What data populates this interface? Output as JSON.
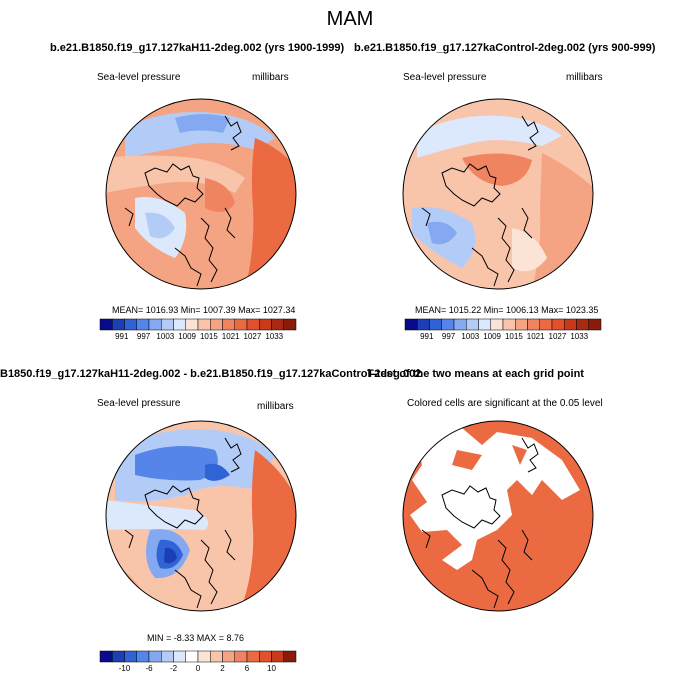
{
  "figure": {
    "title": "MAM"
  },
  "panels": [
    {
      "title": "b.e21.B1850.f19_g17.127kaH11-2deg.002 (yrs 1900-1999)",
      "left_label": "Sea-level pressure",
      "right_label": "millibars",
      "stats": "MEAN= 1016.93  Min= 1007.39  Max= 1027.34",
      "colorbar_ticks": [
        "991",
        "997",
        "1003",
        "1009",
        "1015",
        "1021",
        "1027",
        "1033"
      ]
    },
    {
      "title": "b.e21.B1850.f19_g17.127kaControl-2deg.002 (yrs 900-999)",
      "left_label": "Sea-level pressure",
      "right_label": "millibars",
      "stats": "MEAN= 1015.22  Min= 1006.13  Max= 1023.35",
      "colorbar_ticks": [
        "991",
        "997",
        "1003",
        "1009",
        "1015",
        "1021",
        "1027",
        "1033"
      ]
    },
    {
      "title": "B1850.f19_g17.127kaH11-2deg.002 - b.e21.B1850.f19_g17.127kaControl-2deg.002",
      "left_label": "Sea-level pressure",
      "right_label": "millibars",
      "stats": "MIN = -8.33 MAX =  8.76",
      "colorbar_ticks": [
        "-10",
        "-6",
        "-2",
        "0",
        "2",
        "6",
        "10"
      ]
    },
    {
      "title": "T-test of the two means at each grid point",
      "left_label": "Colored cells are significant at the 0.05 level"
    }
  ],
  "colors": {
    "pressure_scale": [
      "#0a0a8c",
      "#1c3fb5",
      "#2f63d6",
      "#5585e8",
      "#84a9f0",
      "#b3ccf7",
      "#dce8fb",
      "#fbe3d5",
      "#f8c5ab",
      "#f4a482",
      "#f08460",
      "#ec6a42",
      "#e2502c",
      "#c93a1b",
      "#a92a12",
      "#8a1a0a"
    ],
    "diff_scale": [
      "#0a0a8c",
      "#1c3fb5",
      "#2f63d6",
      "#5585e8",
      "#84a9f0",
      "#b3ccf7",
      "#dce8fb",
      "#ffffff",
      "#fbe3d5",
      "#f8c5ab",
      "#f4a482",
      "#f08460",
      "#ec6a42",
      "#e2502c",
      "#c93a1b",
      "#8a1a0a"
    ],
    "significant": "#ec6a42"
  }
}
